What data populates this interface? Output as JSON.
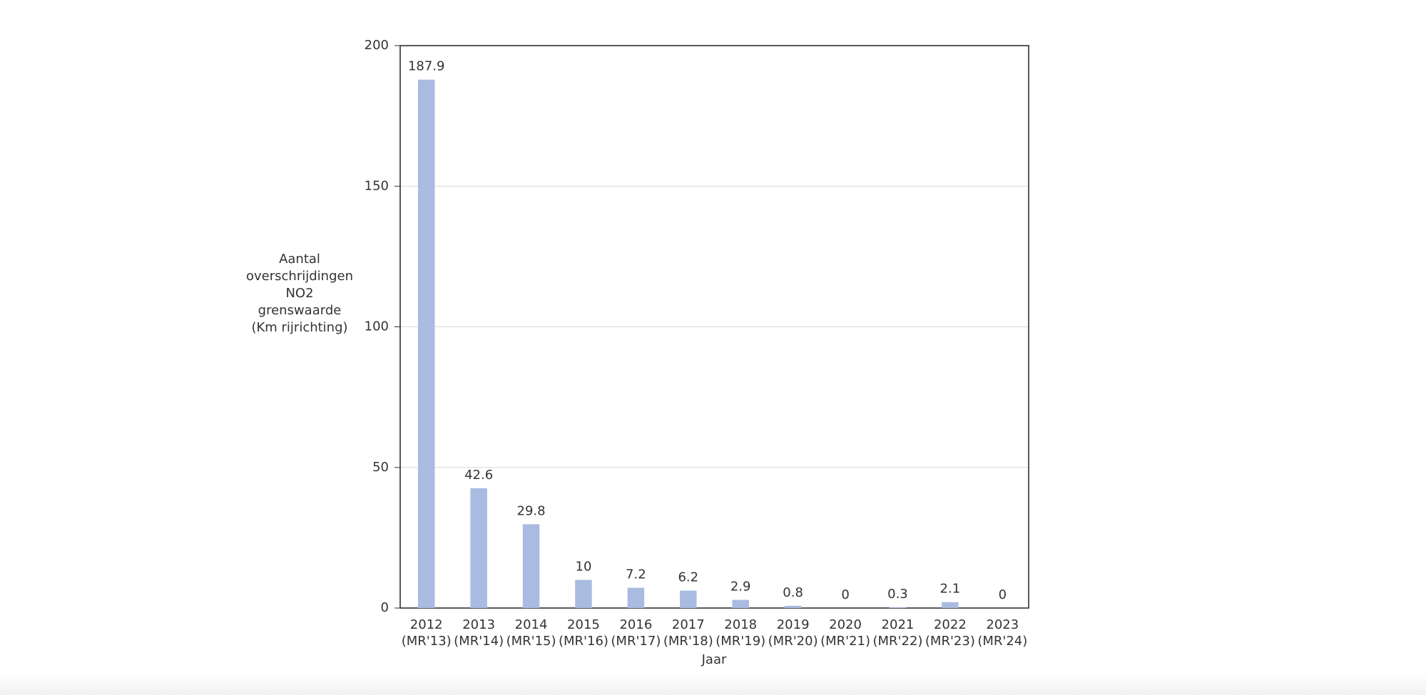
{
  "chart_data": {
    "type": "bar",
    "y_label": [
      "Aantal",
      "overschrijdingen",
      "NO2",
      "grenswaarde",
      "(Km rijrichting)"
    ],
    "x_label": "Jaar",
    "categories": [
      [
        "2012",
        "(MR'13)"
      ],
      [
        "2013",
        "(MR'14)"
      ],
      [
        "2014",
        "(MR'15)"
      ],
      [
        "2015",
        "(MR'16)"
      ],
      [
        "2016",
        "(MR'17)"
      ],
      [
        "2017",
        "(MR'18)"
      ],
      [
        "2018",
        "(MR'19)"
      ],
      [
        "2019",
        "(MR'20)"
      ],
      [
        "2020",
        "(MR'21)"
      ],
      [
        "2021",
        "(MR'22)"
      ],
      [
        "2022",
        "(MR'23)"
      ],
      [
        "2023",
        "(MR'24)"
      ]
    ],
    "values": [
      187.9,
      42.6,
      29.8,
      10,
      7.2,
      6.2,
      2.9,
      0.8,
      0,
      0.3,
      2.1,
      0
    ],
    "color": "#aabbe1",
    "ylim": [
      0,
      200
    ],
    "yticks": [
      0,
      50,
      100,
      150,
      200
    ],
    "grid": true
  }
}
